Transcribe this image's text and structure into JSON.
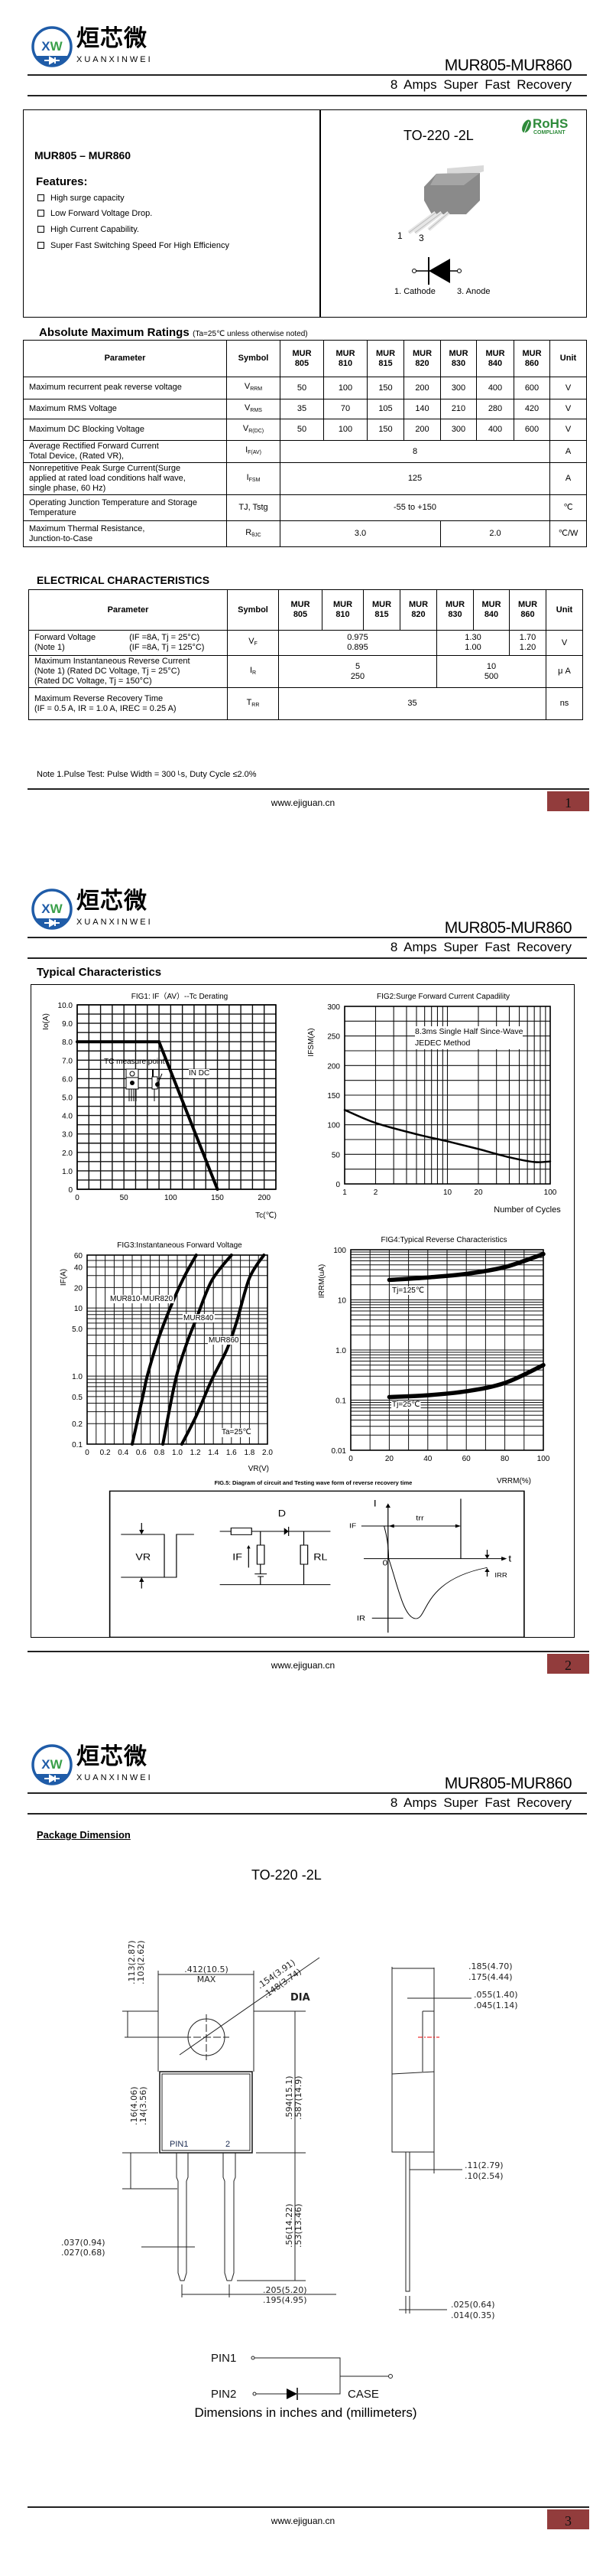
{
  "header": {
    "logo_cn": "烜芯微",
    "logo_en": "XUANXINWEI",
    "logo_mark": "XW",
    "title": "MUR805-MUR860",
    "subtitle": "8 Amps Super Fast Recovery"
  },
  "footer": {
    "website": "www.ejiguan.cn",
    "pages": [
      "1",
      "2",
      "3"
    ]
  },
  "page1": {
    "part_range": "MUR805 – MUR860",
    "features_title": "Features:",
    "features": [
      "High surge capacity",
      "Low Forward Voltage Drop.",
      "High Current Capability.",
      "Super Fast Switching Speed For High Efficiency"
    ],
    "package": "TO-220 -2L",
    "rohs": {
      "main": "RoHS",
      "sub": "COMPLIANT",
      "color": "#2e8b3a"
    },
    "pin_numbers": [
      "1",
      "3"
    ],
    "pin_labels": [
      "1. Cathode",
      "3. Anode"
    ],
    "abs_max": {
      "title": "Absolute Maximum Ratings",
      "note": "(Ta=25℃ unless otherwise noted)",
      "header": [
        "Parameter",
        "Symbol",
        "MUR\n805",
        "MUR\n810",
        "MUR\n815",
        "MUR\n820",
        "MUR\n830",
        "MUR\n840",
        "MUR\n860",
        "Unit"
      ],
      "rows": [
        {
          "param": "Maximum recurrent peak reverse voltage",
          "sym": "V",
          "sub": "RRM",
          "cells": [
            {
              "v": "50"
            },
            {
              "v": "100"
            },
            {
              "v": "150"
            },
            {
              "v": "200"
            },
            {
              "v": "300"
            },
            {
              "v": "400"
            },
            {
              "v": "600"
            }
          ],
          "unit": "V"
        },
        {
          "param": "Maximum RMS Voltage",
          "sym": "V",
          "sub": "RMS",
          "cells": [
            {
              "v": "35"
            },
            {
              "v": "70"
            },
            {
              "v": "105"
            },
            {
              "v": "140"
            },
            {
              "v": "210"
            },
            {
              "v": "280"
            },
            {
              "v": "420"
            }
          ],
          "unit": "V"
        },
        {
          "param": "Maximum DC Blocking Voltage",
          "sym": "V",
          "sub": "R(DC)",
          "cells": [
            {
              "v": "50"
            },
            {
              "v": "100"
            },
            {
              "v": "150"
            },
            {
              "v": "200"
            },
            {
              "v": "300"
            },
            {
              "v": "400"
            },
            {
              "v": "600"
            }
          ],
          "unit": "V"
        },
        {
          "param": "Average Rectified Forward Current\nTotal Device, (Rated VR),",
          "sym": "I",
          "sub": "F(AV)",
          "cells": [
            {
              "v": "8",
              "span": 7
            }
          ],
          "unit": "A"
        },
        {
          "param": "Nonrepetitive Peak Surge Current(Surge\napplied at rated load conditions half wave,\nsingle phase, 60 Hz)",
          "sym": "I",
          "sub": "FSM",
          "cells": [
            {
              "v": "125",
              "span": 7
            }
          ],
          "unit": "A"
        },
        {
          "param": "Operating Junction Temperature and Storage\nTemperature",
          "sym": "TJ, Tstg",
          "sub": "",
          "cells": [
            {
              "v": "-55 to +150",
              "span": 7
            }
          ],
          "unit": "℃"
        },
        {
          "param": "Maximum Thermal Resistance,\nJunction-to-Case",
          "sym": "R",
          "sub": "θJC",
          "cells": [
            {
              "v": "3.0",
              "span": 4
            },
            {
              "v": "2.0",
              "span": 3
            }
          ],
          "unit": "℃/W"
        }
      ]
    },
    "electrical": {
      "title": "ELECTRICAL CHARACTERISTICS",
      "header": [
        "Parameter",
        "Symbol",
        "MUR\n805",
        "MUR\n810",
        "MUR\n815",
        "MUR\n820",
        "MUR\n830",
        "MUR\n840",
        "MUR\n860",
        "Unit"
      ],
      "rows": [
        {
          "param": "Forward Voltage\n(Note 1)",
          "cond": "(IF =8A, Tj = 25°C)\n(IF =8A, Tj = 125°C)",
          "sym": "V",
          "sub": "F",
          "cells": [
            {
              "v": "0.975\n0.895",
              "span": 4
            },
            {
              "v": "1.30\n1.00",
              "span": 2
            },
            {
              "v": "1.70\n1.20",
              "span": 1
            }
          ],
          "unit": "V"
        },
        {
          "param": "Maximum Instantaneous Reverse Current\n(Note 1)      (Rated DC Voltage, Tj = 25°C)\n                   (Rated DC Voltage, Tj = 150°C)",
          "cond": "",
          "sym": "I",
          "sub": "R",
          "cells": [
            {
              "v": "5\n250",
              "span": 4
            },
            {
              "v": "10\n500",
              "span": 3
            }
          ],
          "unit": "μ A"
        },
        {
          "param": "Maximum Reverse Recovery Time\n(IF = 0.5 A, IR = 1.0 A, IREC = 0.25 A)",
          "cond": "",
          "sym": "T",
          "sub": "RR",
          "cells": [
            {
              "v": "35",
              "span": 7
            }
          ],
          "unit": "ns"
        }
      ]
    },
    "note": "Note 1.Pulse Test: Pulse Width = 300 ᴸs, Duty Cycle  ≤2.0%"
  },
  "page2": {
    "section_title": "Typical Characteristics",
    "fig5": {
      "title": "FIG.5: Diagram of circuit and Testing wave form of reverse recovery time",
      "labels": {
        "vr": "VR",
        "d": "D",
        "if": "IF",
        "rl": "RL",
        "i_axis": "I",
        "t_axis": "t",
        "if_level": "IF",
        "trr": "trr",
        "zero": "0",
        "ir": "IR",
        "irr": "IRR"
      }
    }
  },
  "chart_data": [
    {
      "type": "line",
      "title": "FIG1: IF（AV）--Tc  Derating",
      "xlabel": "Tc(℃)",
      "ylabel": "Io(A)",
      "x_scale": "linear",
      "y_scale": "linear",
      "xlim": [
        0,
        212.5
      ],
      "ylim": [
        0,
        10
      ],
      "grid": true,
      "x_ticks": [
        0,
        50,
        100,
        150,
        200
      ],
      "x_tick_labels": [
        "0",
        "50",
        "100",
        "150",
        "200"
      ],
      "y_ticks": [
        0,
        1,
        2,
        3,
        4,
        5,
        6,
        7,
        8,
        9,
        10
      ],
      "y_tick_labels": [
        "0",
        "1.0",
        "2.0",
        "3.0",
        "4.0",
        "5.0",
        "6.0",
        "7.0",
        "8.0",
        "9.0",
        "10.0"
      ],
      "series": [
        {
          "x": [
            0,
            87.5,
            150
          ],
          "y": [
            8,
            8,
            0
          ]
        }
      ],
      "annotations": [
        "TC measure point",
        "IN DC"
      ]
    },
    {
      "type": "line",
      "title": "FIG2:Surge Forward Current Capadility",
      "xlabel": "Number of Cycles",
      "ylabel": "IFSM(A)",
      "x_scale": "log",
      "y_scale": "linear",
      "xlim": [
        1,
        100
      ],
      "ylim": [
        0,
        300
      ],
      "grid": true,
      "x_ticks": [
        1,
        2,
        10,
        20,
        100
      ],
      "x_tick_labels": [
        "1",
        "2",
        "10",
        "20",
        "100"
      ],
      "y_ticks": [
        0,
        50,
        100,
        150,
        200,
        250,
        300
      ],
      "y_tick_labels": [
        "0",
        "50",
        "100",
        "150",
        "200",
        "250",
        "300"
      ],
      "series": [
        {
          "x": [
            1,
            2,
            5,
            10,
            20,
            40,
            70,
            100
          ],
          "y": [
            125,
            103,
            84,
            72,
            59,
            45,
            37,
            38
          ]
        }
      ],
      "annotations": [
        "8.3ms Single Half Since-Wave\nJEDEC Method"
      ]
    },
    {
      "type": "line",
      "title": "FIG3:Instantaneous Forward Voltage",
      "xlabel": "VR(V)",
      "ylabel": "IF(A)",
      "x_scale": "linear",
      "y_scale": "log",
      "xlim": [
        0,
        2.0
      ],
      "ylim": [
        0.1,
        60
      ],
      "grid": true,
      "x_ticks": [
        0,
        0.2,
        0.4,
        0.6,
        0.8,
        1.0,
        1.2,
        1.4,
        1.6,
        1.8,
        2.0
      ],
      "x_tick_labels": [
        "0",
        "0.2",
        "0.4",
        "0.6",
        "0.8",
        "1.0",
        "1.2",
        "1.4",
        "1.6",
        "1.8",
        "2.0"
      ],
      "y_ticks": [
        0.1,
        0.2,
        0.5,
        1,
        5,
        10,
        20,
        40,
        60
      ],
      "y_tick_labels": [
        "0.1",
        "0.2",
        "0.5",
        "1.0",
        "5.0",
        "10",
        "20",
        "40",
        "60"
      ],
      "series": [
        {
          "name": "MUR810-MUR820",
          "x": [
            0.5,
            0.62,
            0.67,
            0.79,
            0.93,
            1.07,
            1.21
          ],
          "y": [
            0.1,
            0.52,
            1.04,
            3.5,
            10.7,
            27.6,
            60
          ]
        },
        {
          "name": "MUR840",
          "x": [
            0.84,
            0.98,
            1.1,
            1.21,
            1.38,
            1.6
          ],
          "y": [
            0.1,
            0.87,
            2.9,
            6.9,
            25,
            60
          ]
        },
        {
          "name": "MUR860",
          "x": [
            1.05,
            1.21,
            1.38,
            1.55,
            1.66,
            1.8,
            1.96
          ],
          "y": [
            0.1,
            0.26,
            0.87,
            2.46,
            6.4,
            27.6,
            60
          ]
        }
      ],
      "annotations": [
        "Ta=25℃"
      ]
    },
    {
      "type": "line",
      "title": "FIG4:Typical Reverse Characteristics",
      "xlabel": "VRRM(%)",
      "ylabel": "IRRM(uA)",
      "x_scale": "linear",
      "y_scale": "log",
      "xlim": [
        0,
        100
      ],
      "ylim": [
        0.01,
        100
      ],
      "grid": true,
      "x_ticks": [
        0,
        20,
        40,
        60,
        80,
        100
      ],
      "x_tick_labels": [
        "0",
        "20",
        "40",
        "60",
        "80",
        "100"
      ],
      "y_ticks": [
        0.01,
        0.1,
        1,
        10,
        100
      ],
      "y_tick_labels": [
        "0.01",
        "0.1",
        "1.0",
        "10",
        "100"
      ],
      "series": [
        {
          "name": "Tj=125℃",
          "x": [
            20,
            40,
            60,
            80,
            100
          ],
          "y": [
            25,
            28,
            33,
            45,
            82
          ]
        },
        {
          "name": "Tj=25℃",
          "x": [
            20,
            40,
            60,
            80,
            100
          ],
          "y": [
            0.115,
            0.125,
            0.15,
            0.22,
            0.5
          ]
        }
      ]
    }
  ],
  "page3": {
    "section_title": "Package Dimension",
    "package": "TO-220 -2L",
    "dims": {
      "d113": [
        ".113(2.87)",
        ".103(2.62)"
      ],
      "d412": [
        ".412(10.5)",
        "MAX"
      ],
      "d154": [
        ".154(3.91)",
        ".148(3.74)"
      ],
      "dia": "DIA",
      "d16": [
        ".16(4.06)",
        ".14(3.56)"
      ],
      "d594": [
        ".594(15.1)",
        ".587(14.9)"
      ],
      "d56": [
        ".56(14.22)",
        ".53(13.46)"
      ],
      "d037": [
        ".037(0.94)",
        ".027(0.68)"
      ],
      "d205": [
        ".205(5.20)",
        ".195(4.95)"
      ],
      "d185": [
        ".185(4.70)",
        ".175(4.44)"
      ],
      "d055": [
        ".055(1.40)",
        ".045(1.14)"
      ],
      "d11": [
        ".11(2.79)",
        ".10(2.54)"
      ],
      "d025": [
        ".025(0.64)",
        ".014(0.35)"
      ]
    },
    "pin_labels": [
      "PIN1",
      "2"
    ],
    "schematic": {
      "pin1": "PIN1",
      "pin2": "PIN2",
      "case": "CASE"
    },
    "caption": "Dimensions in inches and (millimeters)"
  }
}
